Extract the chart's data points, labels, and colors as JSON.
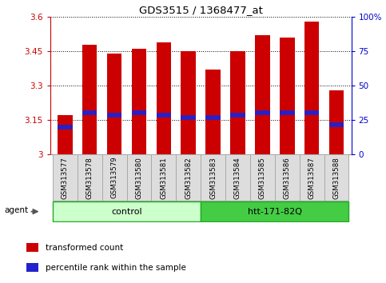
{
  "title": "GDS3515 / 1368477_at",
  "samples": [
    "GSM313577",
    "GSM313578",
    "GSM313579",
    "GSM313580",
    "GSM313581",
    "GSM313582",
    "GSM313583",
    "GSM313584",
    "GSM313585",
    "GSM313586",
    "GSM313587",
    "GSM313588"
  ],
  "bar_values": [
    3.17,
    3.48,
    3.44,
    3.46,
    3.49,
    3.45,
    3.37,
    3.45,
    3.52,
    3.51,
    3.58,
    3.28
  ],
  "percentile_values": [
    3.12,
    3.18,
    3.17,
    3.18,
    3.17,
    3.16,
    3.16,
    3.17,
    3.18,
    3.18,
    3.18,
    3.13
  ],
  "bar_bottom": 3.0,
  "ylim": [
    3.0,
    3.6
  ],
  "y_ticks": [
    3.0,
    3.15,
    3.3,
    3.45,
    3.6
  ],
  "y_tick_labels": [
    "3",
    "3.15",
    "3.3",
    "3.45",
    "3.6"
  ],
  "right_yticks": [
    0,
    25,
    50,
    75,
    100
  ],
  "right_ytick_labels": [
    "0",
    "25",
    "50",
    "75",
    "100%"
  ],
  "bar_color": "#cc0000",
  "percentile_color": "#2222cc",
  "groups": [
    {
      "label": "control",
      "start": 0,
      "end": 5,
      "color": "#ccffcc",
      "edge_color": "#22aa22"
    },
    {
      "label": "htt-171-82Q",
      "start": 6,
      "end": 11,
      "color": "#44cc44",
      "edge_color": "#22aa22"
    }
  ],
  "agent_label": "agent",
  "legend_items": [
    {
      "label": "transformed count",
      "color": "#cc0000"
    },
    {
      "label": "percentile rank within the sample",
      "color": "#2222cc"
    }
  ],
  "bar_width": 0.6,
  "bg_color": "#ffffff",
  "plot_bg": "#ffffff",
  "tick_bg": "#dddddd",
  "tick_edge": "#aaaaaa"
}
